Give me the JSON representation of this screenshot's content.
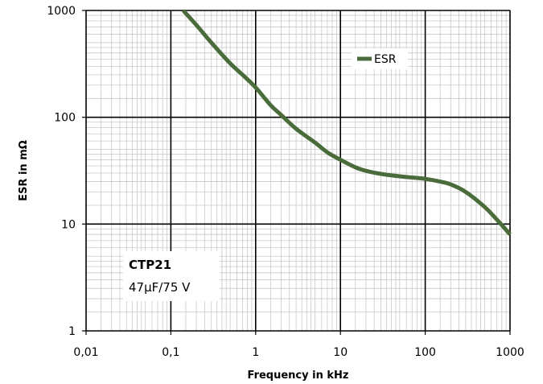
{
  "chart_data": {
    "type": "line",
    "title": "",
    "xlabel": "Frequency in kHz",
    "ylabel": "ESR in mΩ",
    "x_scale": "log",
    "y_scale": "log",
    "xlim": [
      0.01,
      1000
    ],
    "ylim": [
      1,
      1000
    ],
    "grid": true,
    "legend_position": "top-right",
    "x_ticks": [
      {
        "value": 0.01,
        "label": "0,01"
      },
      {
        "value": 0.1,
        "label": "0,1"
      },
      {
        "value": 1,
        "label": "1"
      },
      {
        "value": 10,
        "label": "10"
      },
      {
        "value": 100,
        "label": "100"
      },
      {
        "value": 1000,
        "label": "1000"
      }
    ],
    "y_ticks": [
      {
        "value": 1,
        "label": "1"
      },
      {
        "value": 10,
        "label": "10"
      },
      {
        "value": 100,
        "label": "100"
      },
      {
        "value": 1000,
        "label": "1000"
      }
    ],
    "series": [
      {
        "name": "ESR",
        "color": "#4a6b3a",
        "x": [
          0.14,
          0.2,
          0.3,
          0.5,
          0.7,
          1,
          1.5,
          2,
          3,
          5,
          7,
          10,
          15,
          20,
          30,
          50,
          70,
          100,
          150,
          200,
          300,
          500,
          700,
          1000
        ],
        "y": [
          1000,
          730,
          500,
          320,
          250,
          190,
          130,
          105,
          78,
          58,
          47,
          40,
          34,
          31.5,
          29.5,
          28,
          27.3,
          26.5,
          25,
          23.5,
          20,
          14.5,
          11,
          8
        ]
      }
    ],
    "annotations": [
      {
        "title": "CTP21",
        "text": "47µF/75 V"
      }
    ]
  }
}
